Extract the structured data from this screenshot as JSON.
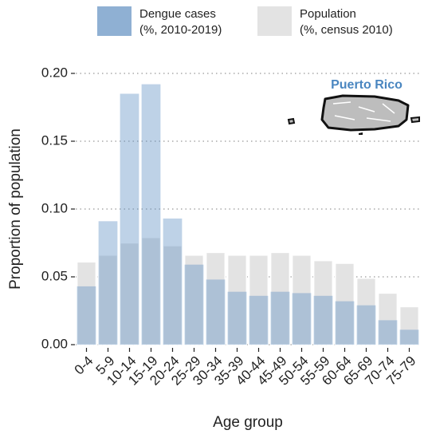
{
  "chart_data": {
    "type": "overlay_bar",
    "x_label": "Age group",
    "y_label": "Proportion of population",
    "annotation": "Puerto Rico",
    "categories": [
      "0-4",
      "5-9",
      "10-14",
      "15-19",
      "20-24",
      "25-29",
      "30-34",
      "35-39",
      "40-44",
      "45-49",
      "50-54",
      "55-59",
      "60-64",
      "65-69",
      "70-74",
      "75-79"
    ],
    "series": [
      {
        "name": "Dengue cases\n(%, 2010-2019)",
        "color": "#8fb0d3",
        "values": [
          0.043,
          0.091,
          0.185,
          0.192,
          0.093,
          0.059,
          0.048,
          0.039,
          0.036,
          0.039,
          0.038,
          0.036,
          0.032,
          0.029,
          0.018,
          0.011
        ]
      },
      {
        "name": "Population\n(%, census 2010)",
        "color": "#e3e3e3",
        "values": [
          0.061,
          0.066,
          0.075,
          0.079,
          0.073,
          0.066,
          0.068,
          0.066,
          0.066,
          0.068,
          0.066,
          0.062,
          0.06,
          0.049,
          0.038,
          0.028
        ]
      }
    ],
    "ylim": [
      0,
      0.21
    ],
    "yticks": [
      {
        "value": 0,
        "label": "0.00"
      },
      {
        "value": 0.05,
        "label": "0.05"
      },
      {
        "value": 0.1,
        "label": "0.10"
      },
      {
        "value": 0.15,
        "label": "0.15"
      },
      {
        "value": 0.2,
        "label": "0.20"
      }
    ],
    "grid": true
  }
}
